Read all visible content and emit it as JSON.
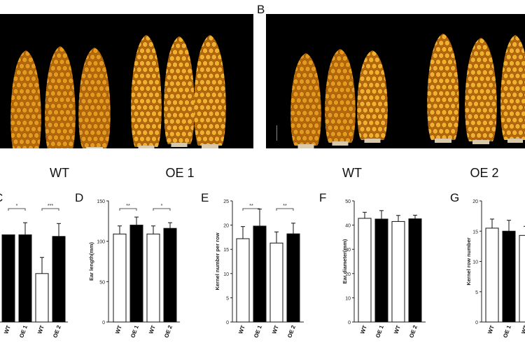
{
  "photos": {
    "panel_b_letter": "B",
    "genotype_labels": [
      "WT",
      "OE 1",
      "WT",
      "OE 2"
    ]
  },
  "colors": {
    "background": "#ffffff",
    "photo_bg": "#000000",
    "kernel": "#e8a020",
    "bar_oe": "#000000",
    "bar_wt": "#ffffff"
  },
  "chart_data": [
    {
      "type": "bar",
      "panel": "C",
      "categories": [
        "WT",
        "OE 1",
        "WT",
        "OE 2"
      ],
      "values": [
        null,
        108,
        60,
        106
      ],
      "errors": [
        null,
        15,
        20,
        16
      ],
      "colors": [
        "#ffffff",
        "#000000",
        "#ffffff",
        "#000000"
      ],
      "ylim": [
        0,
        150
      ],
      "significance": [
        {
          "pair": [
            0,
            1
          ],
          "label": "*"
        },
        {
          "pair": [
            2,
            3
          ],
          "label": "***"
        }
      ]
    },
    {
      "type": "bar",
      "panel": "D",
      "categories": [
        "WT",
        "OE 1",
        "WT",
        "OE 2"
      ],
      "values": [
        109,
        120,
        109,
        116
      ],
      "errors": [
        10,
        10,
        10,
        7
      ],
      "colors": [
        "#ffffff",
        "#000000",
        "#ffffff",
        "#000000"
      ],
      "ylabel": "Ear length(mm)",
      "yticks": [
        0,
        50,
        100,
        150
      ],
      "ylim": [
        0,
        150
      ],
      "significance": [
        {
          "pair": [
            0,
            1
          ],
          "label": "**"
        },
        {
          "pair": [
            2,
            3
          ],
          "label": "*"
        }
      ]
    },
    {
      "type": "bar",
      "panel": "E",
      "categories": [
        "WT",
        "OE 1",
        "WT",
        "OE 2"
      ],
      "values": [
        17.2,
        19.8,
        16.3,
        18.2
      ],
      "errors": [
        2.5,
        3.5,
        2.3,
        2.2
      ],
      "colors": [
        "#ffffff",
        "#000000",
        "#ffffff",
        "#000000"
      ],
      "ylabel": "Kernel number per row",
      "yticks": [
        0,
        5,
        10,
        15,
        20,
        25
      ],
      "ylim": [
        0,
        25
      ],
      "significance": [
        {
          "pair": [
            0,
            1
          ],
          "label": "**"
        },
        {
          "pair": [
            2,
            3
          ],
          "label": "**"
        }
      ]
    },
    {
      "type": "bar",
      "panel": "F",
      "categories": [
        "WT",
        "OE 1",
        "WT",
        "OE 2"
      ],
      "values": [
        42.8,
        42.5,
        41.5,
        42.6
      ],
      "errors": [
        2.5,
        3.5,
        2.5,
        1.5
      ],
      "colors": [
        "#ffffff",
        "#000000",
        "#ffffff",
        "#000000"
      ],
      "ylabel": "Ear diameter(mm)",
      "yticks": [
        0,
        10,
        20,
        30,
        40,
        50
      ],
      "ylim": [
        0,
        50
      ],
      "significance": []
    },
    {
      "type": "bar",
      "panel": "G",
      "categories": [
        "WT",
        "OE 1",
        "WT"
      ],
      "values": [
        15.5,
        15.0,
        14.3
      ],
      "errors": [
        1.5,
        1.8,
        1.5
      ],
      "colors": [
        "#ffffff",
        "#000000",
        "#ffffff"
      ],
      "ylabel": "Kernel row number",
      "yticks": [
        0,
        5,
        10,
        15,
        20
      ],
      "ylim": [
        0,
        20
      ],
      "significance": []
    }
  ]
}
